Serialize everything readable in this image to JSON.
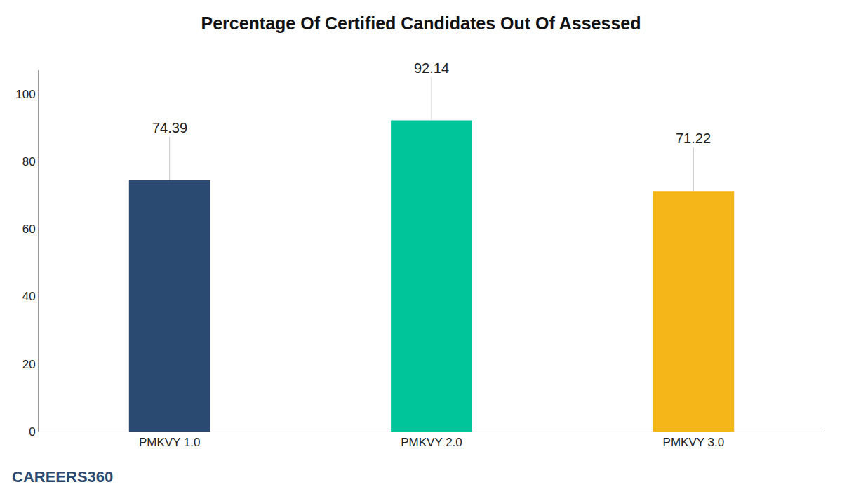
{
  "chart_data": {
    "type": "bar",
    "title": "Percentage Of Certified Candidates Out Of Assessed",
    "categories": [
      "PMKVY 1.0",
      "PMKVY 2.0",
      "PMKVY 3.0"
    ],
    "values": [
      74.39,
      92.14,
      71.22
    ],
    "colors": [
      "#2b4a72",
      "#00c49a",
      "#f5b61a"
    ],
    "ylim": [
      0,
      107
    ],
    "yticks": [
      0,
      20,
      40,
      60,
      80,
      100
    ],
    "grid": false,
    "data_labels": true,
    "annotations": [
      "CAREERS360"
    ]
  }
}
